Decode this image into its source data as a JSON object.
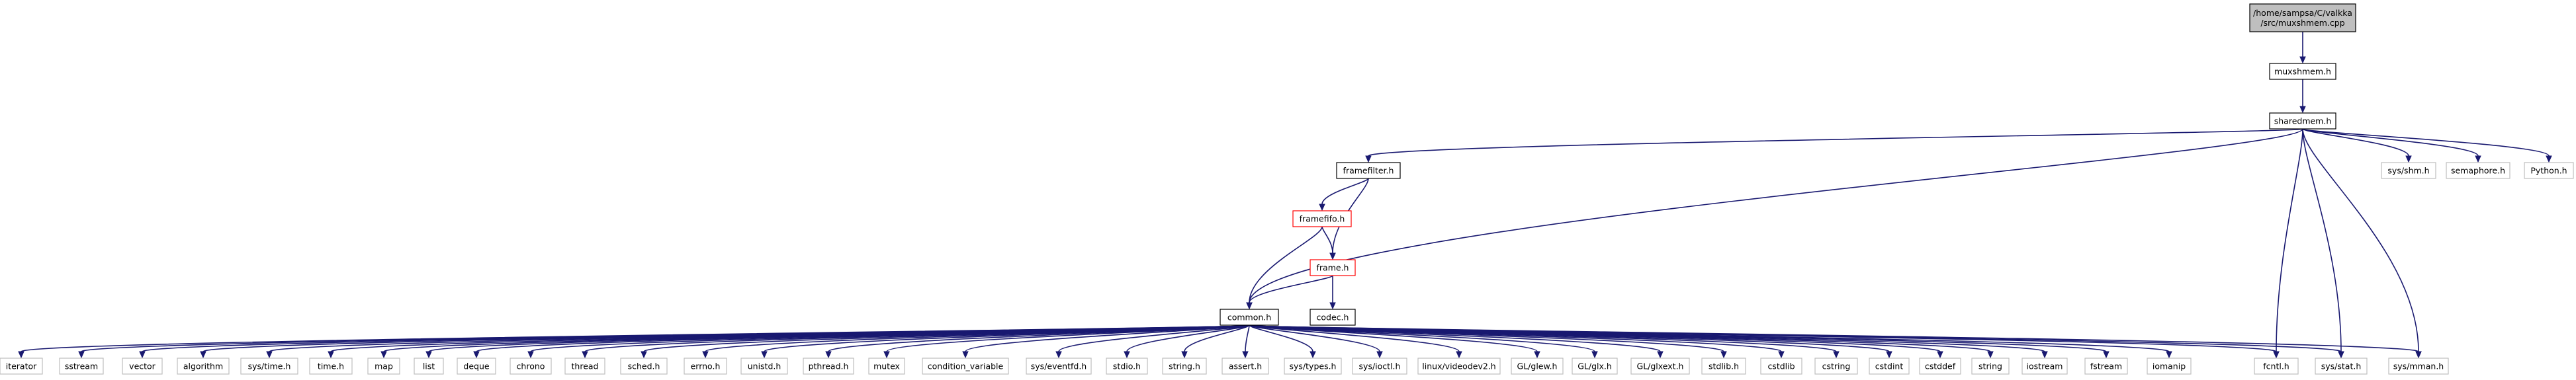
{
  "colors": {
    "edge": "#191970",
    "node_border_black": "#000000",
    "node_border_gray": "#bfbfbf",
    "node_border_red": "#ff0000",
    "root_fill": "#bfbfbf",
    "node_fill": "#ffffff"
  },
  "nodes": [
    {
      "id": "root",
      "lines": [
        "/home/sampsa/C/valkka",
        "/src/muxshmem.cpp"
      ],
      "style": "root"
    },
    {
      "id": "muxshmem_h",
      "lines": [
        "muxshmem.h"
      ],
      "style": "black"
    },
    {
      "id": "sharedmem_h",
      "lines": [
        "sharedmem.h"
      ],
      "style": "black"
    },
    {
      "id": "framefilter_h",
      "lines": [
        "framefilter.h"
      ],
      "style": "black"
    },
    {
      "id": "sys_shm_h",
      "lines": [
        "sys/shm.h"
      ],
      "style": "gray"
    },
    {
      "id": "semaphore_h",
      "lines": [
        "semaphore.h"
      ],
      "style": "gray"
    },
    {
      "id": "python_h",
      "lines": [
        "Python.h"
      ],
      "style": "gray"
    },
    {
      "id": "framefifo_h",
      "lines": [
        "framefifo.h"
      ],
      "style": "red"
    },
    {
      "id": "frame_h",
      "lines": [
        "frame.h"
      ],
      "style": "red"
    },
    {
      "id": "common_h",
      "lines": [
        "common.h"
      ],
      "style": "black"
    },
    {
      "id": "codec_h",
      "lines": [
        "codec.h"
      ],
      "style": "black"
    },
    {
      "id": "iterator",
      "lines": [
        "iterator"
      ],
      "style": "gray"
    },
    {
      "id": "sstream",
      "lines": [
        "sstream"
      ],
      "style": "gray"
    },
    {
      "id": "vector",
      "lines": [
        "vector"
      ],
      "style": "gray"
    },
    {
      "id": "algorithm",
      "lines": [
        "algorithm"
      ],
      "style": "gray"
    },
    {
      "id": "sys_time_h",
      "lines": [
        "sys/time.h"
      ],
      "style": "gray"
    },
    {
      "id": "time_h",
      "lines": [
        "time.h"
      ],
      "style": "gray"
    },
    {
      "id": "map",
      "lines": [
        "map"
      ],
      "style": "gray"
    },
    {
      "id": "list",
      "lines": [
        "list"
      ],
      "style": "gray"
    },
    {
      "id": "deque",
      "lines": [
        "deque"
      ],
      "style": "gray"
    },
    {
      "id": "chrono",
      "lines": [
        "chrono"
      ],
      "style": "gray"
    },
    {
      "id": "thread",
      "lines": [
        "thread"
      ],
      "style": "gray"
    },
    {
      "id": "sched_h",
      "lines": [
        "sched.h"
      ],
      "style": "gray"
    },
    {
      "id": "errno_h",
      "lines": [
        "errno.h"
      ],
      "style": "gray"
    },
    {
      "id": "unistd_h",
      "lines": [
        "unistd.h"
      ],
      "style": "gray"
    },
    {
      "id": "pthread_h",
      "lines": [
        "pthread.h"
      ],
      "style": "gray"
    },
    {
      "id": "mutex",
      "lines": [
        "mutex"
      ],
      "style": "gray"
    },
    {
      "id": "condition_variable",
      "lines": [
        "condition_variable"
      ],
      "style": "gray"
    },
    {
      "id": "sys_eventfd_h",
      "lines": [
        "sys/eventfd.h"
      ],
      "style": "gray"
    },
    {
      "id": "stdio_h",
      "lines": [
        "stdio.h"
      ],
      "style": "gray"
    },
    {
      "id": "string_h",
      "lines": [
        "string.h"
      ],
      "style": "gray"
    },
    {
      "id": "assert_h",
      "lines": [
        "assert.h"
      ],
      "style": "gray"
    },
    {
      "id": "sys_types_h",
      "lines": [
        "sys/types.h"
      ],
      "style": "gray"
    },
    {
      "id": "sys_ioctl_h",
      "lines": [
        "sys/ioctl.h"
      ],
      "style": "gray"
    },
    {
      "id": "linux_videodev2_h",
      "lines": [
        "linux/videodev2.h"
      ],
      "style": "gray"
    },
    {
      "id": "gl_glew_h",
      "lines": [
        "GL/glew.h"
      ],
      "style": "gray"
    },
    {
      "id": "gl_glx_h",
      "lines": [
        "GL/glx.h"
      ],
      "style": "gray"
    },
    {
      "id": "gl_glxext_h",
      "lines": [
        "GL/glxext.h"
      ],
      "style": "gray"
    },
    {
      "id": "stdlib_h",
      "lines": [
        "stdlib.h"
      ],
      "style": "gray"
    },
    {
      "id": "cstdlib",
      "lines": [
        "cstdlib"
      ],
      "style": "gray"
    },
    {
      "id": "cstring",
      "lines": [
        "cstring"
      ],
      "style": "gray"
    },
    {
      "id": "cstdint",
      "lines": [
        "cstdint"
      ],
      "style": "gray"
    },
    {
      "id": "cstddef",
      "lines": [
        "cstddef"
      ],
      "style": "gray"
    },
    {
      "id": "string",
      "lines": [
        "string"
      ],
      "style": "gray"
    },
    {
      "id": "iostream",
      "lines": [
        "iostream"
      ],
      "style": "gray"
    },
    {
      "id": "fstream",
      "lines": [
        "fstream"
      ],
      "style": "gray"
    },
    {
      "id": "iomanip",
      "lines": [
        "iomanip"
      ],
      "style": "gray"
    },
    {
      "id": "fcntl_h",
      "lines": [
        "fcntl.h"
      ],
      "style": "gray"
    },
    {
      "id": "sys_stat_h",
      "lines": [
        "sys/stat.h"
      ],
      "style": "gray"
    },
    {
      "id": "sys_mman_h",
      "lines": [
        "sys/mman.h"
      ],
      "style": "gray"
    }
  ],
  "edges": [
    [
      "root",
      "muxshmem_h"
    ],
    [
      "muxshmem_h",
      "sharedmem_h"
    ],
    [
      "sharedmem_h",
      "framefilter_h"
    ],
    [
      "sharedmem_h",
      "sys_shm_h"
    ],
    [
      "sharedmem_h",
      "semaphore_h"
    ],
    [
      "sharedmem_h",
      "python_h"
    ],
    [
      "sharedmem_h",
      "common_h"
    ],
    [
      "sharedmem_h",
      "fcntl_h"
    ],
    [
      "sharedmem_h",
      "sys_stat_h"
    ],
    [
      "sharedmem_h",
      "sys_mman_h"
    ],
    [
      "framefilter_h",
      "framefifo_h"
    ],
    [
      "framefilter_h",
      "frame_h"
    ],
    [
      "framefifo_h",
      "frame_h"
    ],
    [
      "framefifo_h",
      "common_h"
    ],
    [
      "frame_h",
      "common_h"
    ],
    [
      "frame_h",
      "codec_h"
    ],
    [
      "common_h",
      "iterator"
    ],
    [
      "common_h",
      "sstream"
    ],
    [
      "common_h",
      "vector"
    ],
    [
      "common_h",
      "algorithm"
    ],
    [
      "common_h",
      "sys_time_h"
    ],
    [
      "common_h",
      "time_h"
    ],
    [
      "common_h",
      "map"
    ],
    [
      "common_h",
      "list"
    ],
    [
      "common_h",
      "deque"
    ],
    [
      "common_h",
      "chrono"
    ],
    [
      "common_h",
      "thread"
    ],
    [
      "common_h",
      "sched_h"
    ],
    [
      "common_h",
      "errno_h"
    ],
    [
      "common_h",
      "unistd_h"
    ],
    [
      "common_h",
      "pthread_h"
    ],
    [
      "common_h",
      "mutex"
    ],
    [
      "common_h",
      "condition_variable"
    ],
    [
      "common_h",
      "sys_eventfd_h"
    ],
    [
      "common_h",
      "stdio_h"
    ],
    [
      "common_h",
      "string_h"
    ],
    [
      "common_h",
      "assert_h"
    ],
    [
      "common_h",
      "sys_types_h"
    ],
    [
      "common_h",
      "sys_ioctl_h"
    ],
    [
      "common_h",
      "linux_videodev2_h"
    ],
    [
      "common_h",
      "gl_glew_h"
    ],
    [
      "common_h",
      "gl_glx_h"
    ],
    [
      "common_h",
      "gl_glxext_h"
    ],
    [
      "common_h",
      "stdlib_h"
    ],
    [
      "common_h",
      "cstdlib"
    ],
    [
      "common_h",
      "cstring"
    ],
    [
      "common_h",
      "cstdint"
    ],
    [
      "common_h",
      "cstddef"
    ],
    [
      "common_h",
      "string"
    ],
    [
      "common_h",
      "iostream"
    ],
    [
      "common_h",
      "fstream"
    ],
    [
      "common_h",
      "iomanip"
    ],
    [
      "common_h",
      "fcntl_h"
    ],
    [
      "common_h",
      "sys_stat_h"
    ],
    [
      "common_h",
      "sys_mman_h"
    ]
  ]
}
